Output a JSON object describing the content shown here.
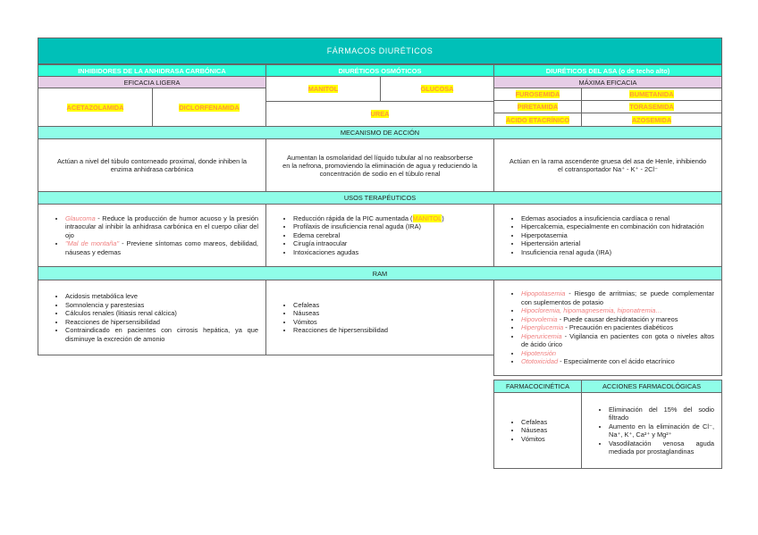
{
  "title": "FÁRMACOS DIURÉTICOS",
  "groups": [
    "INHIBIDORES DE LA ANHIDRASA CARBÓNICA",
    "DIURÉTICOS OSMÓTICOS",
    "DIURÉTICOS DEL ASA (o de techo alto)"
  ],
  "efficacy": {
    "left": "EFICACIA LIGERA",
    "right": "MÁXIMA EFICACIA"
  },
  "drugs": {
    "left": [
      "ACETAZOLAMIDA",
      "DICLORFENAMIDA"
    ],
    "middle": [
      "MANITOL",
      "GLUCOSA",
      "UREA"
    ],
    "right": [
      "FUROSEMIDA",
      "BUMETANIDA",
      "PIRETAMIDA",
      "TORASEMIDA",
      "ÁCIDO ETACRÍNICO",
      "AZOSEMIDA"
    ]
  },
  "mechanism": {
    "header": "MECANISMO DE ACCIÓN",
    "left": "Actúan a nivel del túbulo contorneado proximal, donde inhiben la enzima anhidrasa carbónica",
    "middle": "Aumentan la osmolaridad del líquido tubular al no reabsorberse en la nefrona, promoviendo la eliminación de agua y reduciendo la concentración de sodio en el túbulo renal",
    "right": "Actúan en la rama ascendente gruesa del asa de Henle, inhibiendo el cotransportador Na⁺ - K⁺ - 2Cl⁻"
  },
  "uses": {
    "header": "USOS TERAPÉUTICOS",
    "left": [
      {
        "term": "Glaucoma",
        "text": " - Reduce la producción de humor acuoso y la presión intraocular al inhibir la anhidrasa carbónica en el cuerpo ciliar del ojo"
      },
      {
        "term": "\"Mal de montaña\"",
        "text": " - Previene síntomas como mareos, debilidad, náuseas y edemas"
      }
    ],
    "middle": {
      "first_pre": "Reducción rápida de la PIC aumentada (",
      "first_hl": "MANITOL",
      "first_post": ")",
      "items": [
        "Profilaxis de insuficiencia renal aguda (IRA)",
        "Edema cerebral",
        "Cirugía intraocular",
        "Intoxicaciones agudas"
      ]
    },
    "right": [
      "Edemas asociados a insuficiencia cardíaca o renal",
      "Hipercalcemia, especialmente en combinación con hidratación",
      "Hiperpotasemia",
      "Hipertensión arterial",
      "Insuficiencia renal aguda (IRA)"
    ]
  },
  "ram": {
    "header": "RAM",
    "left": [
      "Acidosis metabólica leve",
      "Somnolencia y parestesias",
      "Cálculos renales (litiasis renal cálcica)",
      "Reacciones de hipersensibilidad",
      "Contraindicado en pacientes con cirrosis hepática, ya que disminuye la excreción de amonio"
    ],
    "middle": [
      "Cefaleas",
      "Náuseas",
      "Vómitos",
      "Reacciones de hipersensibilidad"
    ],
    "right": [
      {
        "term": "Hipopotasemia",
        "text": " - Riesgo de arritmias; se puede complementar con suplementos de potasio"
      },
      {
        "term": "Hipocloremia, hipomagnesemia, hiponatremia…",
        "text": ""
      },
      {
        "term": "Hipovolemia",
        "text": " - Puede causar deshidratación y mareos"
      },
      {
        "term": "Hiperglucemia",
        "text": " - Precaución en pacientes diabéticos"
      },
      {
        "term": "Hiperuricemia",
        "text": " - Vigilancia en pacientes con gota o niveles altos de ácido úrico"
      },
      {
        "term": "Hipotensión",
        "text": ""
      },
      {
        "term": "Ototoxicidad",
        "text": " - Especialmente con el ácido etacrínico"
      }
    ]
  },
  "pk": {
    "header": "FARMACOCINÉTICA",
    "items": [
      "Cefaleas",
      "Náuseas",
      "Vómitos"
    ]
  },
  "actions": {
    "header": "ACCIONES FARMACOLÓGICAS",
    "items": [
      "Eliminación del 15% del sodio filtrado",
      "Aumento en la eliminación de Cl⁻, Na⁺, K⁺, Ca²⁺ y Mg²⁺",
      "Vasodilatación venosa aguda mediada por prostaglandinas"
    ]
  }
}
